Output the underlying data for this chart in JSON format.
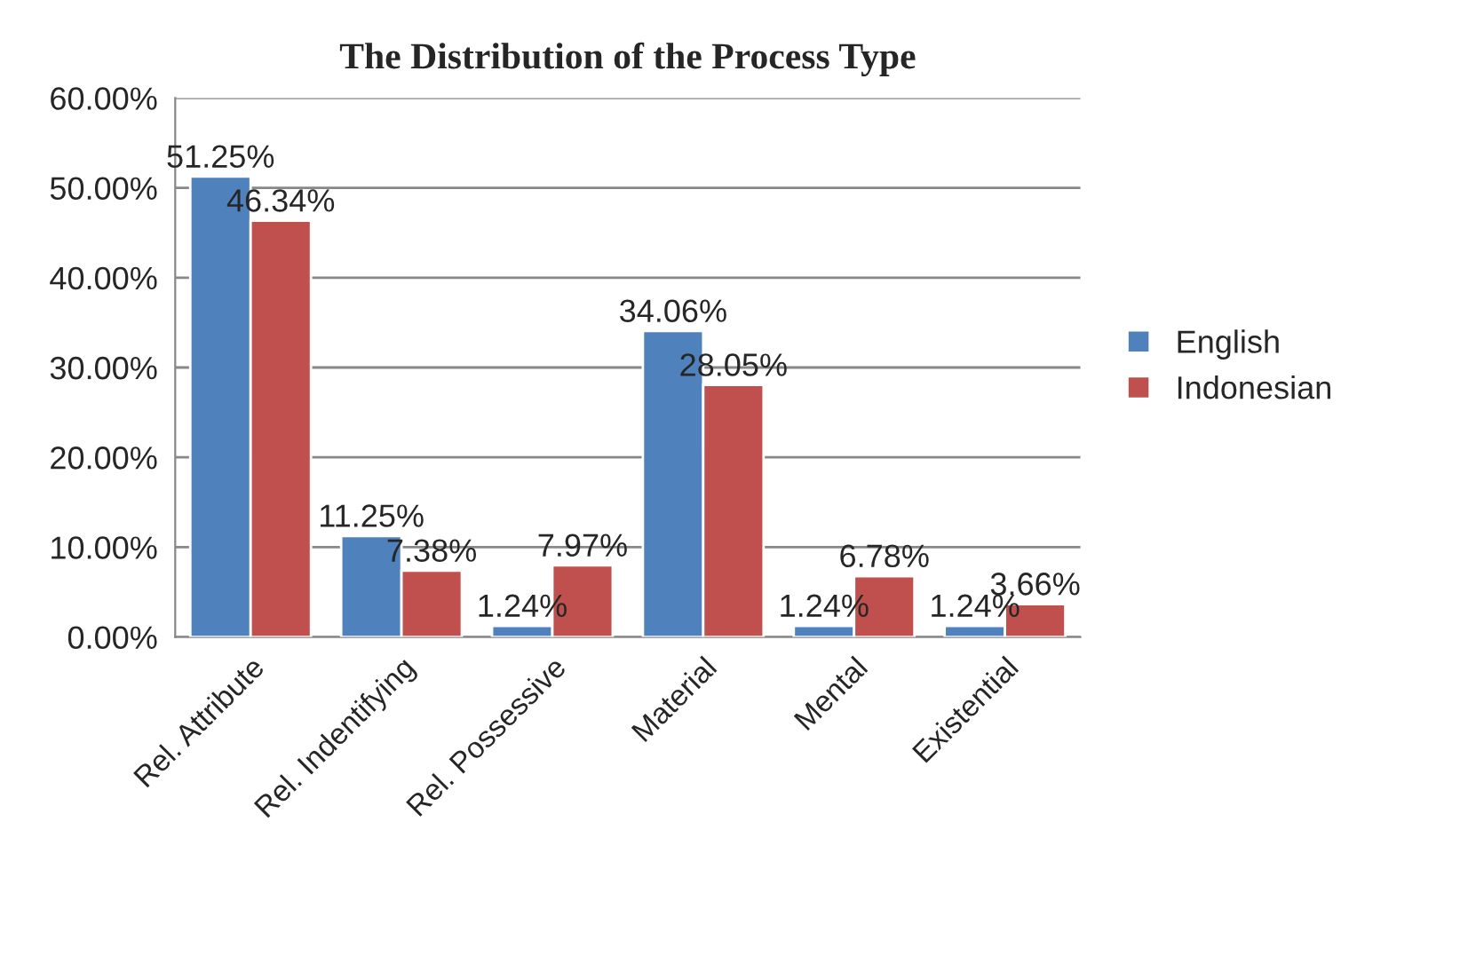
{
  "chart_data": {
    "type": "bar",
    "title": "The Distribution of the Process Type",
    "categories": [
      "Rel. Attribute",
      "Rel. Indentifying",
      "Rel. Possessive",
      "Material",
      "Mental",
      "Existential"
    ],
    "series": [
      {
        "name": "English",
        "color": "#4f81bd",
        "values": [
          51.25,
          11.25,
          1.24,
          34.06,
          1.24,
          1.24
        ],
        "value_labels": [
          "51.25%",
          "11.25%",
          "1.24%",
          "34.06%",
          "1.24%",
          "1.24%"
        ]
      },
      {
        "name": "Indonesian",
        "color": "#c0504d",
        "values": [
          46.34,
          7.38,
          7.97,
          28.05,
          6.78,
          3.66
        ],
        "value_labels": [
          "46.34%",
          "7.38%",
          "7.97%",
          "28.05%",
          "6.78%",
          "3.66%"
        ]
      }
    ],
    "ylim": [
      0,
      60
    ],
    "yticks": [
      {
        "value": 0,
        "label": "0.00%"
      },
      {
        "value": 10,
        "label": "10.00%"
      },
      {
        "value": 20,
        "label": "20.00%"
      },
      {
        "value": 30,
        "label": "30.00%"
      },
      {
        "value": 40,
        "label": "40.00%"
      },
      {
        "value": 50,
        "label": "50.00%"
      },
      {
        "value": 60,
        "label": "60.00%"
      }
    ],
    "grid": "y",
    "legend": "right"
  }
}
